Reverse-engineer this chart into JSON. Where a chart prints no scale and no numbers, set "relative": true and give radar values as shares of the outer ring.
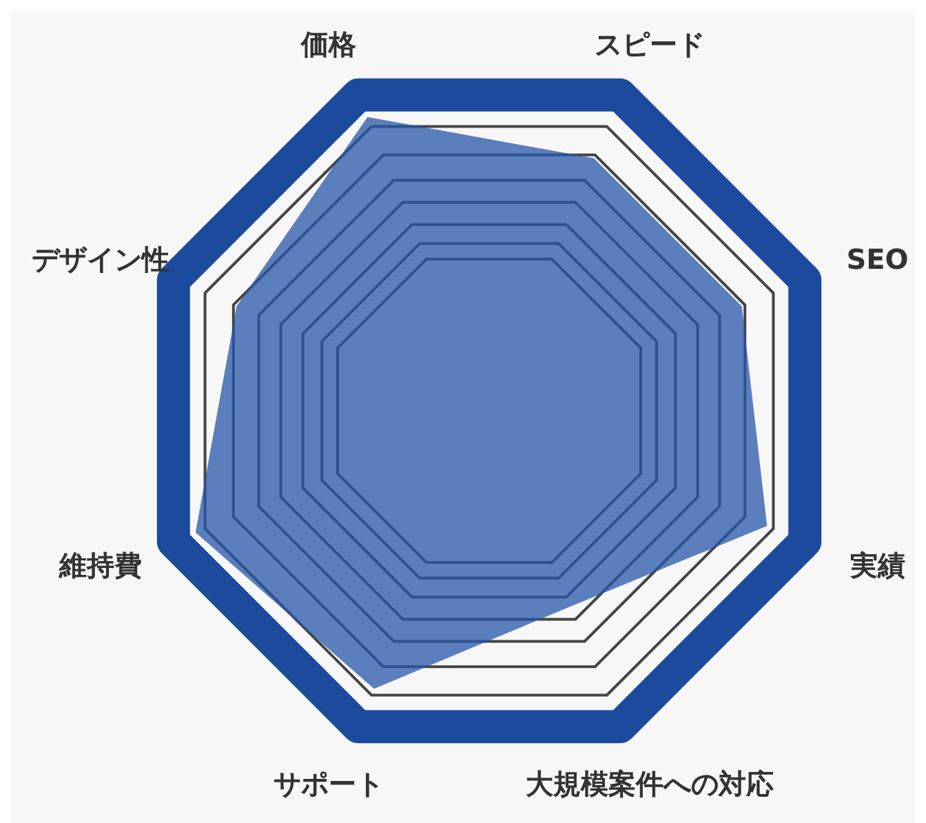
{
  "chart_data": {
    "type": "radar",
    "relative": true,
    "categories": [
      "スピード",
      "SEO",
      "実績",
      "大規模案件への対応",
      "サポート",
      "維持費",
      "デザイン性",
      "価格"
    ],
    "series": [
      {
        "color": "#2756a8",
        "values": [
          0.8,
          0.8,
          0.88,
          0.62,
          0.88,
          0.93,
          0.8,
          0.93
        ]
      }
    ]
  }
}
